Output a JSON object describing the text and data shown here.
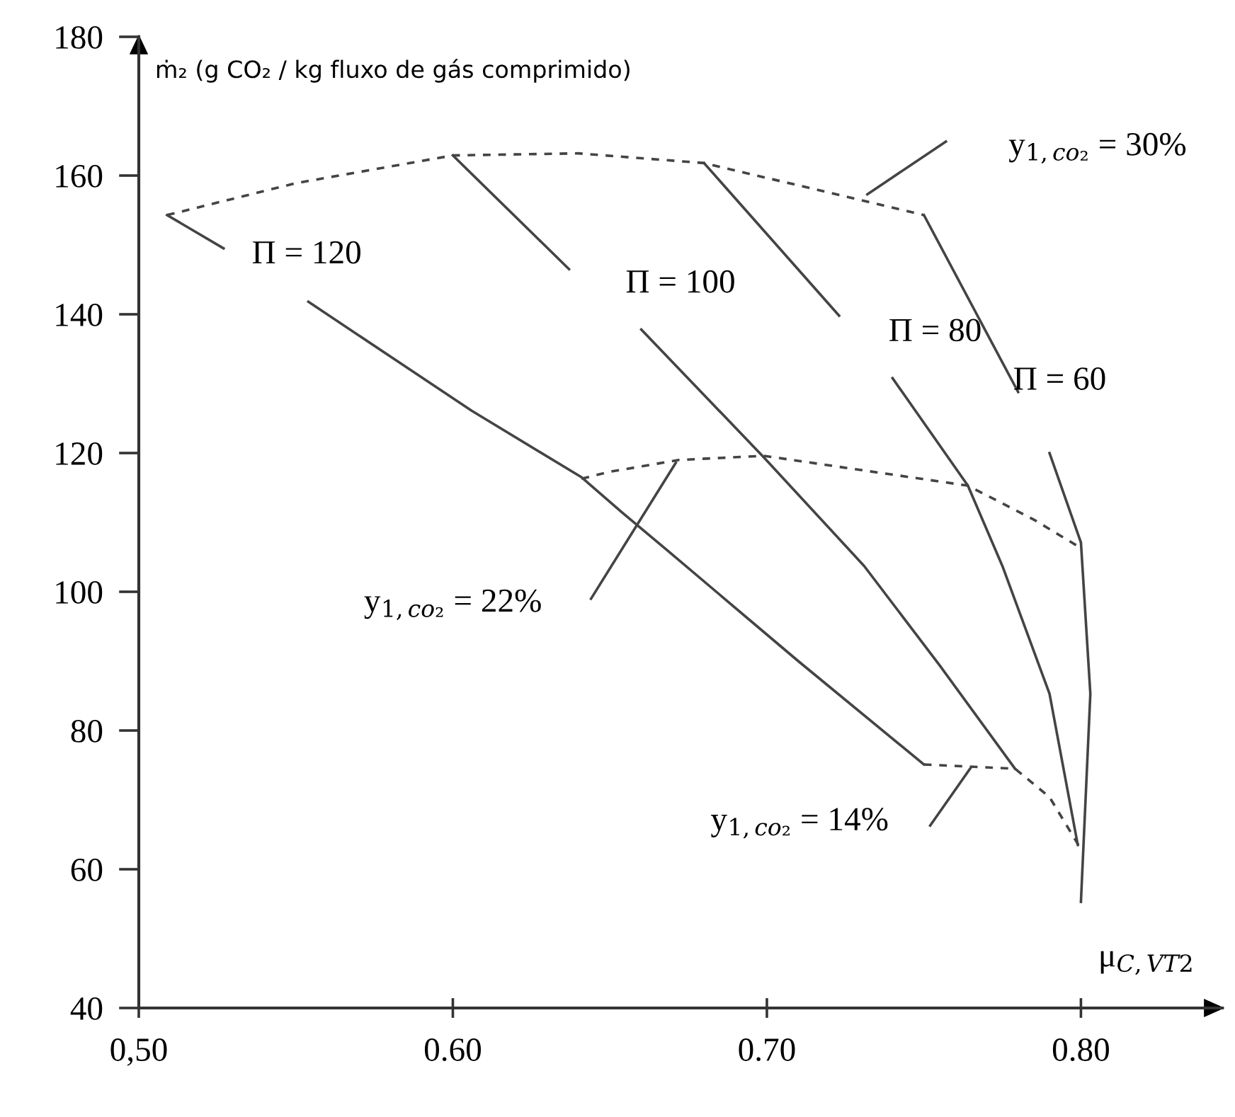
{
  "chart_data": {
    "type": "line",
    "xlabel": "μ$_{C,VT2}$",
    "ylabel": "ṁ₂ (g CO₂ / kg fluxo de gás comprimido)",
    "xlim": [
      0.5,
      0.845
    ],
    "ylim": [
      40,
      180
    ],
    "xticks": [
      {
        "value": 0.5,
        "label": "0,50"
      },
      {
        "value": 0.6,
        "label": "0.60"
      },
      {
        "value": 0.7,
        "label": "0.70"
      },
      {
        "value": 0.8,
        "label": "0.80"
      }
    ],
    "yticks": [
      40,
      60,
      80,
      100,
      120,
      140,
      160,
      180
    ],
    "grid": false,
    "legend": false,
    "marker": "none",
    "series": [
      {
        "color": "#444444",
        "line_style": "solid",
        "x": [
          0.509,
          0.527,
          null,
          0.554,
          0.606,
          0.641,
          0.654,
          0.669,
          0.71,
          0.75
        ],
        "values": [
          154.3,
          149.5,
          null,
          141.8,
          126.1,
          116.5,
          111.4,
          105.7,
          90,
          75.1
        ]
      },
      {
        "color": "#444444",
        "line_style": "solid",
        "x": [
          0.6,
          0.637,
          null,
          0.66,
          0.699,
          0.731,
          0.755,
          0.779
        ],
        "values": [
          162.9,
          146.5,
          null,
          137.8,
          119.4,
          103.7,
          89.4,
          74.5
        ]
      },
      {
        "color": "#444444",
        "line_style": "solid",
        "x": [
          0.68,
          0.723,
          null,
          0.74,
          0.764,
          0.775,
          0.79,
          0.799
        ],
        "values": [
          161.8,
          139.8,
          null,
          130.8,
          115.3,
          103.7,
          85.3,
          63.5
        ]
      },
      {
        "color": "#444444",
        "line_style": "solid",
        "x": [
          0.75,
          0.78,
          null,
          0.79,
          0.8,
          0.803,
          0.8
        ],
        "values": [
          154.3,
          128.8,
          null,
          120,
          107.1,
          85.3,
          55.3
        ]
      },
      {
        "color": "#444444",
        "line_style": "dashed",
        "x": [
          0.509,
          0.55,
          0.6,
          0.64,
          0.68,
          0.75
        ],
        "values": [
          154.3,
          158.9,
          162.9,
          163.2,
          161.8,
          154.3
        ]
      },
      {
        "color": "#444444",
        "line_style": "dashed",
        "x": [
          0.641,
          0.65,
          0.672,
          0.699,
          0.764,
          0.785,
          0.8
        ],
        "values": [
          116.3,
          117.3,
          119,
          119.6,
          115.3,
          110.4,
          106.3
        ]
      },
      {
        "color": "#444444",
        "line_style": "dashed",
        "x": [
          0.75,
          0.779,
          0.79,
          0.8
        ],
        "values": [
          75.1,
          74.5,
          70.4,
          62.9
        ]
      },
      {
        "color": "#444444",
        "line_style": "solid",
        "x": [
          0.732,
          0.757
        ],
        "values": [
          157.3,
          164.9
        ]
      },
      {
        "color": "#444444",
        "line_style": "solid",
        "x": [
          0.671,
          0.644
        ],
        "values": [
          118.6,
          99
        ]
      },
      {
        "color": "#444444",
        "line_style": "solid",
        "x": [
          0.765,
          0.752
        ],
        "values": [
          74.7,
          66.3
        ]
      }
    ],
    "annotations": [
      "Π = 120",
      "Π = 100",
      "Π = 80",
      "Π = 60",
      "y$_{1,co₂}$ = 30%",
      "y$_{1,co₂}$ = 22%",
      "y$_{1,co₂}$ = 14%"
    ]
  }
}
